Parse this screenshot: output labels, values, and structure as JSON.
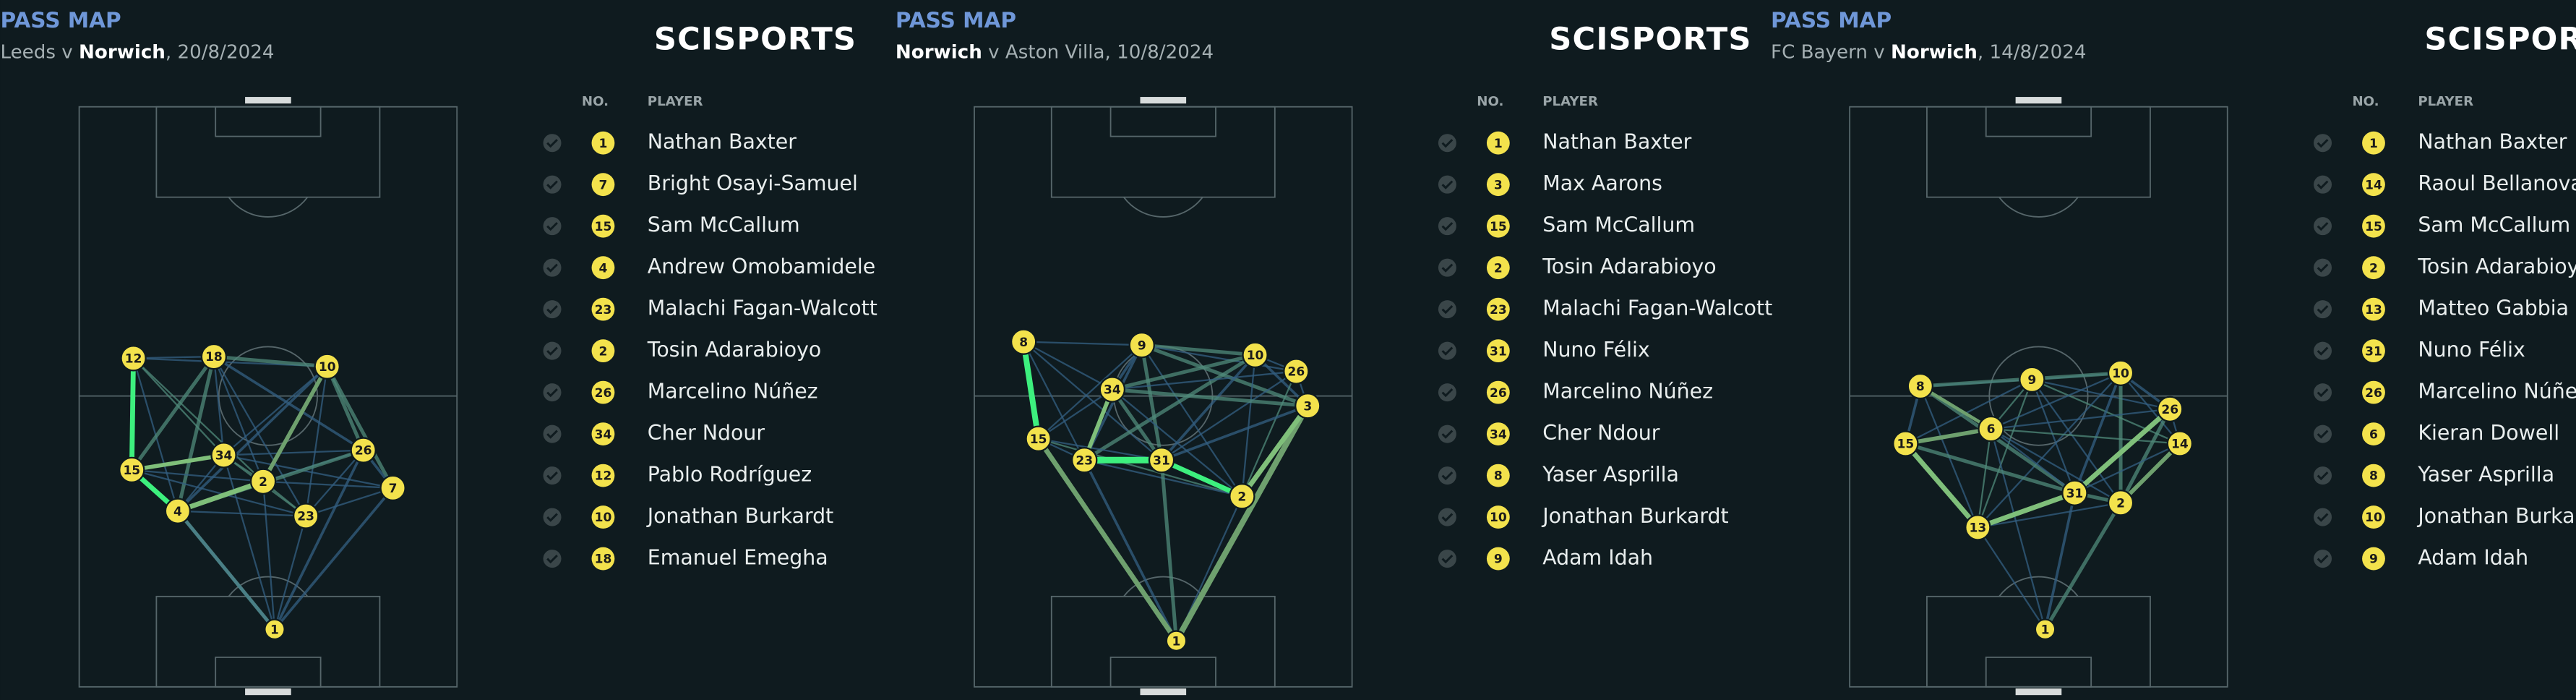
{
  "panels": [
    {
      "title": "PASS MAP",
      "subtitle": [
        "Leeds v ",
        "Norwich",
        ", 20/8/2024"
      ],
      "brand": "SCISPORTS",
      "headers": {
        "no": "NO.",
        "player": "PLAYER"
      },
      "players": [
        {
          "no": 1,
          "name": "Nathan Baxter"
        },
        {
          "no": 7,
          "name": "Bright Osayi-Samuel"
        },
        {
          "no": 15,
          "name": "Sam McCallum"
        },
        {
          "no": 4,
          "name": "Andrew Omobamidele"
        },
        {
          "no": 23,
          "name": "Malachi Fagan-Walcott"
        },
        {
          "no": 2,
          "name": "Tosin Adarabioyo"
        },
        {
          "no": 26,
          "name": "Marcelino Núñez"
        },
        {
          "no": 34,
          "name": "Cher Ndour"
        },
        {
          "no": 12,
          "name": "Pablo Rodríguez"
        },
        {
          "no": 10,
          "name": "Jonathan Burkardt"
        },
        {
          "no": 18,
          "name": "Emanuel Emegha"
        }
      ],
      "nodes": [
        12,
        18,
        10,
        34,
        26,
        15,
        2,
        7,
        4,
        23,
        1
      ]
    },
    {
      "title": "PASS MAP",
      "subtitle": [
        "",
        "Norwich",
        " v Aston Villa, 10/8/2024"
      ],
      "brand": "SCISPORTS",
      "headers": {
        "no": "NO.",
        "player": "PLAYER"
      },
      "players": [
        {
          "no": 1,
          "name": "Nathan Baxter"
        },
        {
          "no": 3,
          "name": "Max Aarons"
        },
        {
          "no": 15,
          "name": "Sam McCallum"
        },
        {
          "no": 2,
          "name": "Tosin Adarabioyo"
        },
        {
          "no": 23,
          "name": "Malachi Fagan-Walcott"
        },
        {
          "no": 31,
          "name": "Nuno Félix"
        },
        {
          "no": 26,
          "name": "Marcelino Núñez"
        },
        {
          "no": 34,
          "name": "Cher Ndour"
        },
        {
          "no": 8,
          "name": "Yaser Asprilla"
        },
        {
          "no": 10,
          "name": "Jonathan Burkardt"
        },
        {
          "no": 9,
          "name": "Adam Idah"
        }
      ],
      "nodes": [
        8,
        9,
        10,
        26,
        34,
        3,
        15,
        23,
        31,
        2,
        1
      ]
    },
    {
      "title": "PASS MAP",
      "subtitle": [
        "FC Bayern v ",
        "Norwich",
        ", 14/8/2024"
      ],
      "brand": "SCISPORTS",
      "headers": {
        "no": "NO.",
        "player": "PLAYER"
      },
      "players": [
        {
          "no": 1,
          "name": "Nathan Baxter"
        },
        {
          "no": 14,
          "name": "Raoul Bellanova"
        },
        {
          "no": 15,
          "name": "Sam McCallum"
        },
        {
          "no": 2,
          "name": "Tosin Adarabioyo"
        },
        {
          "no": 13,
          "name": "Matteo Gabbia"
        },
        {
          "no": 31,
          "name": "Nuno Félix"
        },
        {
          "no": 26,
          "name": "Marcelino Núñez"
        },
        {
          "no": 6,
          "name": "Kieran Dowell"
        },
        {
          "no": 8,
          "name": "Yaser Asprilla"
        },
        {
          "no": 10,
          "name": "Jonathan Burkardt"
        },
        {
          "no": 9,
          "name": "Adam Idah"
        }
      ],
      "nodes": [
        9,
        10,
        8,
        6,
        26,
        15,
        14,
        31,
        2,
        13,
        1
      ]
    }
  ]
}
